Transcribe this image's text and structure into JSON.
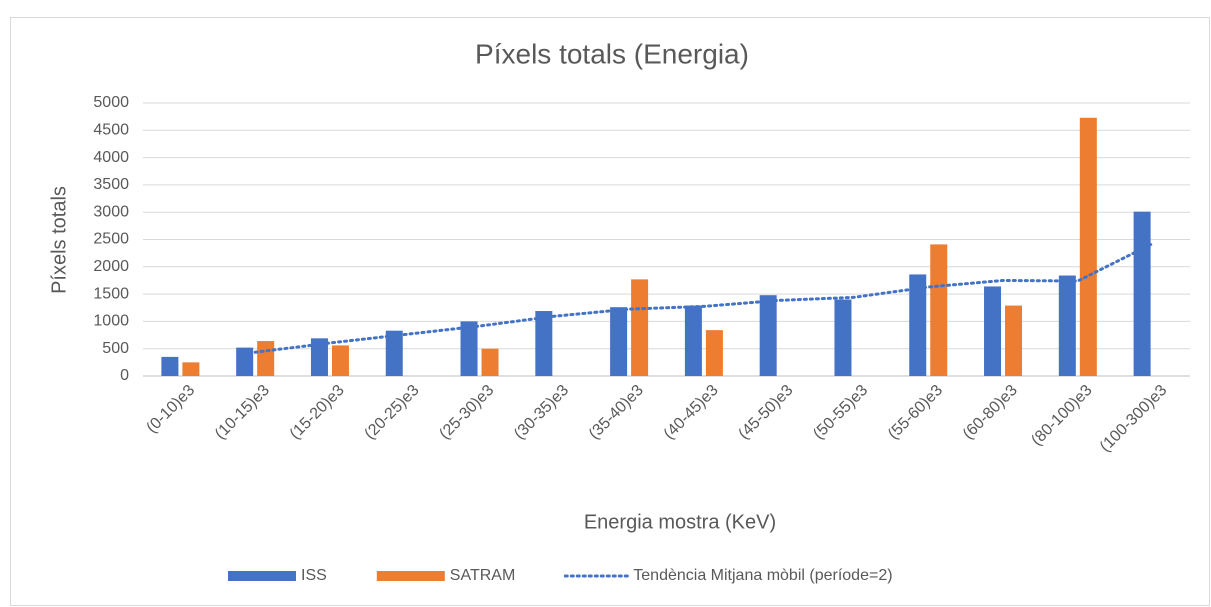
{
  "chart_data": {
    "type": "bar",
    "title": "Píxels totals (Energia)",
    "x_label": "Energia mostra (KeV)",
    "y_label": "Píxels totals",
    "categories": [
      "(0-10)e3",
      "(10-15)e3",
      "(15-20)e3",
      "(20-25)e3",
      "(25-30)e3",
      "(30-35)e3",
      "(35-40)e3",
      "(40-45)e3",
      "(45-50)e3",
      "(50-55)e3",
      "(55-60)e3",
      "(60-80)e3",
      "(80-100)e3",
      "(100-300)e3"
    ],
    "series": [
      {
        "name": "ISS",
        "color": "#4472c4",
        "values": [
          350,
          520,
          690,
          830,
          1000,
          1190,
          1260,
          1290,
          1480,
          1400,
          1860,
          1640,
          1840,
          3010
        ]
      },
      {
        "name": "SATRAM",
        "color": "#ed7d31",
        "values": [
          250,
          640,
          560,
          null,
          500,
          null,
          1770,
          840,
          null,
          null,
          2410,
          1290,
          4730,
          null
        ]
      },
      {
        "name": "Tendència Mitjana mòbil (període=2)",
        "color": "#4472c4",
        "type": "line",
        "line_style": "dotted",
        "values": [
          null,
          435,
          605,
          760,
          915,
          1095,
          1225,
          1275,
          1385,
          1440,
          1630,
          1750,
          1740,
          2425
        ]
      }
    ],
    "ylim": [
      0,
      5000
    ],
    "yticks": [
      0,
      500,
      1000,
      1500,
      2000,
      2500,
      3000,
      3500,
      4000,
      4500,
      5000
    ],
    "grid": true,
    "legend": "bottom"
  }
}
